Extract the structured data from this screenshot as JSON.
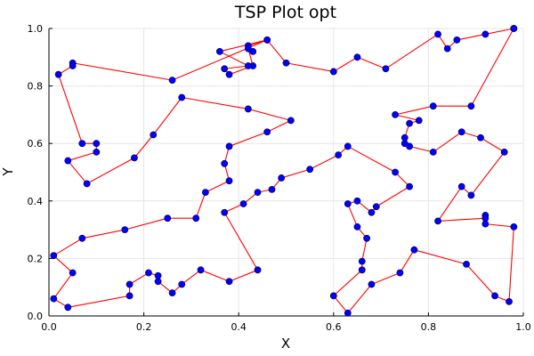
{
  "chart_data": {
    "type": "line",
    "title": "TSP Plot opt",
    "xlabel": "X",
    "ylabel": "Y",
    "xlim": [
      0.0,
      1.0
    ],
    "ylim": [
      0.0,
      1.0
    ],
    "xticks": [
      "0.0",
      "0.2",
      "0.4",
      "0.6",
      "0.8",
      "1.0"
    ],
    "yticks": [
      "0.0",
      "0.2",
      "0.4",
      "0.6",
      "0.8",
      "1.0"
    ],
    "grid": true,
    "legend": "none",
    "line_color": "#ff0000",
    "marker_color": "#0000ff",
    "series": [
      {
        "points": [
          [
            0.98,
            1.0
          ],
          [
            0.92,
            0.98
          ],
          [
            0.86,
            0.96
          ],
          [
            0.84,
            0.93
          ],
          [
            0.82,
            0.98
          ],
          [
            0.71,
            0.86
          ],
          [
            0.65,
            0.9
          ],
          [
            0.6,
            0.85
          ],
          [
            0.5,
            0.88
          ],
          [
            0.46,
            0.96
          ],
          [
            0.42,
            0.94
          ],
          [
            0.43,
            0.92
          ],
          [
            0.42,
            0.93
          ],
          [
            0.43,
            0.87
          ],
          [
            0.38,
            0.84
          ],
          [
            0.37,
            0.86
          ],
          [
            0.42,
            0.87
          ],
          [
            0.36,
            0.92
          ],
          [
            0.46,
            0.96
          ],
          [
            0.26,
            0.82
          ],
          [
            0.05,
            0.88
          ],
          [
            0.05,
            0.87
          ],
          [
            0.02,
            0.84
          ],
          [
            0.07,
            0.6
          ],
          [
            0.1,
            0.6
          ],
          [
            0.1,
            0.57
          ],
          [
            0.04,
            0.54
          ],
          [
            0.08,
            0.46
          ],
          [
            0.18,
            0.55
          ],
          [
            0.22,
            0.63
          ],
          [
            0.28,
            0.76
          ],
          [
            0.42,
            0.72
          ],
          [
            0.51,
            0.68
          ],
          [
            0.46,
            0.64
          ],
          [
            0.38,
            0.59
          ],
          [
            0.37,
            0.53
          ],
          [
            0.38,
            0.47
          ],
          [
            0.33,
            0.43
          ],
          [
            0.31,
            0.34
          ],
          [
            0.25,
            0.34
          ],
          [
            0.16,
            0.3
          ],
          [
            0.07,
            0.27
          ],
          [
            0.01,
            0.21
          ],
          [
            0.05,
            0.15
          ],
          [
            0.01,
            0.06
          ],
          [
            0.04,
            0.03
          ],
          [
            0.17,
            0.07
          ],
          [
            0.17,
            0.11
          ],
          [
            0.21,
            0.15
          ],
          [
            0.23,
            0.14
          ],
          [
            0.23,
            0.12
          ],
          [
            0.26,
            0.08
          ],
          [
            0.28,
            0.11
          ],
          [
            0.32,
            0.16
          ],
          [
            0.38,
            0.12
          ],
          [
            0.44,
            0.16
          ],
          [
            0.37,
            0.36
          ],
          [
            0.41,
            0.39
          ],
          [
            0.44,
            0.43
          ],
          [
            0.47,
            0.44
          ],
          [
            0.49,
            0.48
          ],
          [
            0.55,
            0.51
          ],
          [
            0.61,
            0.56
          ],
          [
            0.63,
            0.59
          ],
          [
            0.73,
            0.5
          ],
          [
            0.76,
            0.45
          ],
          [
            0.69,
            0.38
          ],
          [
            0.68,
            0.36
          ],
          [
            0.65,
            0.4
          ],
          [
            0.63,
            0.39
          ],
          [
            0.65,
            0.31
          ],
          [
            0.67,
            0.27
          ],
          [
            0.66,
            0.19
          ],
          [
            0.66,
            0.16
          ],
          [
            0.6,
            0.07
          ],
          [
            0.63,
            0.01
          ],
          [
            0.68,
            0.11
          ],
          [
            0.74,
            0.15
          ],
          [
            0.77,
            0.23
          ],
          [
            0.88,
            0.18
          ],
          [
            0.94,
            0.07
          ],
          [
            0.97,
            0.05
          ],
          [
            0.98,
            0.31
          ],
          [
            0.92,
            0.32
          ],
          [
            0.92,
            0.35
          ],
          [
            0.92,
            0.34
          ],
          [
            0.82,
            0.33
          ],
          [
            0.87,
            0.45
          ],
          [
            0.89,
            0.42
          ],
          [
            0.96,
            0.57
          ],
          [
            0.91,
            0.62
          ],
          [
            0.87,
            0.64
          ],
          [
            0.81,
            0.57
          ],
          [
            0.76,
            0.59
          ],
          [
            0.75,
            0.6
          ],
          [
            0.75,
            0.62
          ],
          [
            0.76,
            0.67
          ],
          [
            0.78,
            0.68
          ],
          [
            0.73,
            0.7
          ],
          [
            0.81,
            0.73
          ],
          [
            0.89,
            0.73
          ],
          [
            0.98,
            1.0
          ]
        ]
      }
    ]
  }
}
